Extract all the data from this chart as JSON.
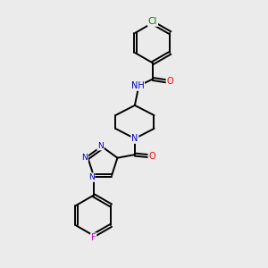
{
  "bg_color": "#ebebeb",
  "bond_color": "#000000",
  "N_color": "#0000cc",
  "O_color": "#ff0000",
  "Cl_color": "#008000",
  "F_color": "#cc00cc",
  "H_color": "#444444",
  "line_width": 1.4,
  "font_size": 7.0,
  "figsize": [
    3.0,
    3.0
  ],
  "dpi": 100,
  "xlim": [
    0,
    10
  ],
  "ylim": [
    0,
    10
  ]
}
